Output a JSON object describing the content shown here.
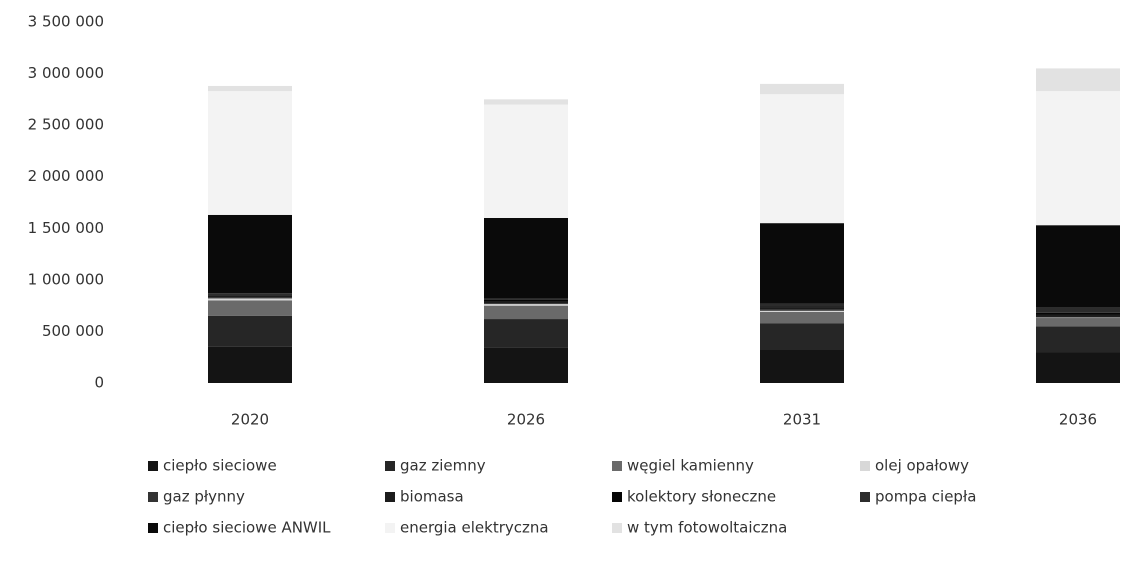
{
  "chart_data": {
    "type": "stacked_bar",
    "categories": [
      "2020",
      "2026",
      "2031",
      "2036"
    ],
    "series": [
      {
        "name": "ciepło sieciowe",
        "color": "#141414",
        "values": [
          350000,
          340000,
          320000,
          300000
        ]
      },
      {
        "name": "gaz ziemny",
        "color": "#262626",
        "values": [
          300000,
          280000,
          260000,
          250000
        ]
      },
      {
        "name": "węgiel kamienny",
        "color": "#6a6a6a",
        "values": [
          150000,
          130000,
          110000,
          80000
        ]
      },
      {
        "name": "olej opałowy",
        "color": "#d8d8d8",
        "values": [
          20000,
          15000,
          10000,
          5000
        ]
      },
      {
        "name": "gaz płynny",
        "color": "#333333",
        "values": [
          10000,
          10000,
          10000,
          5000
        ]
      },
      {
        "name": "biomasa",
        "color": "#1c1c1c",
        "values": [
          20000,
          20000,
          20000,
          20000
        ]
      },
      {
        "name": "kolektory słoneczne",
        "color": "#050505",
        "values": [
          10000,
          10000,
          15000,
          20000
        ]
      },
      {
        "name": "pompa ciepła",
        "color": "#2c2c2c",
        "values": [
          10000,
          15000,
          25000,
          50000
        ]
      },
      {
        "name": "ciepło sieciowe ANWIL",
        "color": "#0a0a0a",
        "values": [
          760000,
          780000,
          780000,
          800000
        ]
      },
      {
        "name": "energia elektryczna",
        "color": "#f3f3f3",
        "values": [
          1200000,
          1100000,
          1250000,
          1300000
        ]
      },
      {
        "name": "w tym fotowoltaiczna",
        "color": "#e2e2e2",
        "values": [
          50000,
          50000,
          100000,
          220000
        ]
      }
    ],
    "ylim": [
      0,
      3500000
    ],
    "yticks": [
      0,
      {
        "value": 500000,
        "label": "500 000"
      },
      {
        "value": 1000000,
        "label": "1 000 000"
      },
      {
        "value": 1500000,
        "label": "1 500 000"
      },
      {
        "value": 2000000,
        "label": "2 000 000"
      },
      {
        "value": 2500000,
        "label": "2 500 000"
      },
      {
        "value": 3000000,
        "label": "3 000 000"
      },
      {
        "value": 3500000,
        "label": "3 500 000"
      }
    ],
    "grid": false
  }
}
